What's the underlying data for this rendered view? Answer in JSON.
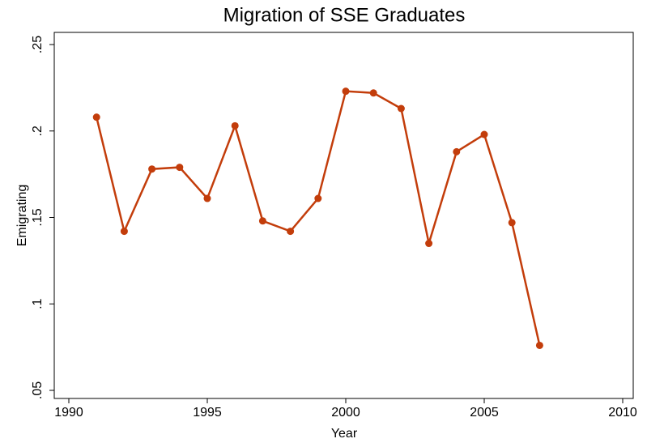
{
  "chart_data": {
    "type": "line",
    "title": "Migration of SSE Graduates",
    "x_label": "Year",
    "y_label": "Emigrating",
    "x": [
      1991,
      1992,
      1993,
      1994,
      1995,
      1996,
      1997,
      1998,
      1999,
      2000,
      2001,
      2002,
      2003,
      2004,
      2005,
      2006,
      2007
    ],
    "series": [
      {
        "name": "Emigrating",
        "color": "#c33d0b",
        "values": [
          0.208,
          0.142,
          0.178,
          0.179,
          0.161,
          0.203,
          0.148,
          0.142,
          0.161,
          0.223,
          0.222,
          0.213,
          0.135,
          0.188,
          0.198,
          0.147,
          0.076
        ]
      }
    ],
    "xlim": [
      1990,
      2010
    ],
    "xticks": [
      1990,
      1995,
      2000,
      2005,
      2010
    ],
    "ylim": [
      0.05,
      0.25
    ],
    "yticks": [
      {
        "value": 0.05,
        "label": ".05"
      },
      {
        "value": 0.1,
        "label": ".1"
      },
      {
        "value": 0.15,
        "label": ".15"
      },
      {
        "value": 0.2,
        "label": ".2"
      },
      {
        "value": 0.25,
        "label": ".25"
      }
    ],
    "grid": false,
    "markers": true
  }
}
